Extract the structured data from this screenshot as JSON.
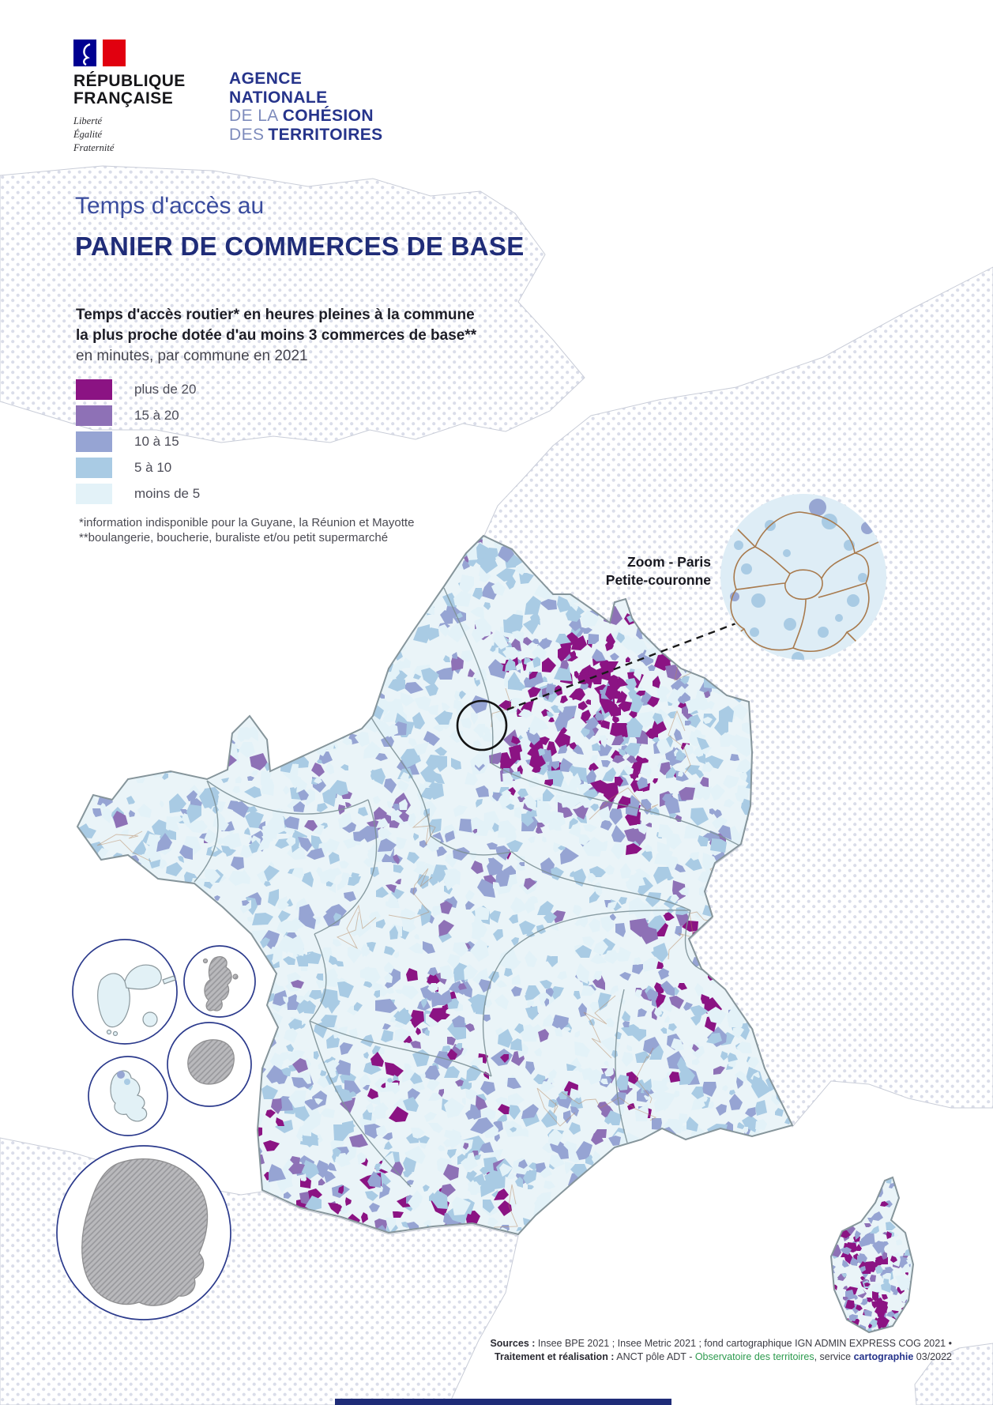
{
  "header": {
    "republic": {
      "name_line1": "RÉPUBLIQUE",
      "name_line2": "FRANÇAISE",
      "motto_line1": "Liberté",
      "motto_line2": "Égalité",
      "motto_line3": "Fraternité"
    },
    "agency": {
      "line1": "AGENCE",
      "line2": "NATIONALE",
      "line3_light": "DE LA",
      "line3_bold": "COHÉSION",
      "line4_light": "DES",
      "line4_bold": "TERRITOIRES"
    }
  },
  "title": {
    "kicker": "Temps d'accès au",
    "main": "PANIER DE COMMERCES DE BASE"
  },
  "legend": {
    "description_line1": "Temps d'accès routier* en heures pleines à la commune",
    "description_line2": "la plus proche dotée d'au moins 3 commerces de base**",
    "description_line3": "en minutes, par commune en 2021",
    "classes": [
      {
        "label": "plus de 20",
        "color": "#8B1383"
      },
      {
        "label": "15 à 20",
        "color": "#8E71B6"
      },
      {
        "label": "10 à 15",
        "color": "#96A4D3"
      },
      {
        "label": "5 à 10",
        "color": "#A9CBE4"
      },
      {
        "label": "moins de 5",
        "color": "#E3F2F8"
      }
    ]
  },
  "footnotes": {
    "line1": "*information indisponible pour la Guyane, la Réunion et Mayotte",
    "line2": "**boulangerie, boucherie, buraliste et/ou petit supermarché"
  },
  "map": {
    "zoom_inset_label_line1": "Zoom - Paris",
    "zoom_inset_label_line2": "Petite-couronne",
    "base_color": "#EAF4F8",
    "outline_color": "#86959B",
    "region_border_color": "#7E9298",
    "commune_border_color": "#B5855C",
    "no_data_pattern": "gray-diagonal-hatch",
    "overseas_insets": [
      {
        "name": "guadeloupe",
        "data_available": true
      },
      {
        "name": "mayotte",
        "data_available": false
      },
      {
        "name": "la-reunion",
        "data_available": false
      },
      {
        "name": "martinique",
        "data_available": true
      },
      {
        "name": "guyane",
        "data_available": false
      }
    ]
  },
  "sources": {
    "line1_bold": "Sources :",
    "line1_rest": " Insee BPE 2021 ; Insee Metric 2021 ; fond cartographique IGN ADMIN EXPRESS COG 2021 •",
    "line2_bold": "Traitement et réalisation :",
    "line2_a": " ANCT pôle ADT - ",
    "line2_link": "Observatoire des territoires",
    "line2_b": ", service ",
    "line2_bold2": "cartographie",
    "line2_c": " 03/2022",
    "link_color": "#2E9B4F"
  }
}
